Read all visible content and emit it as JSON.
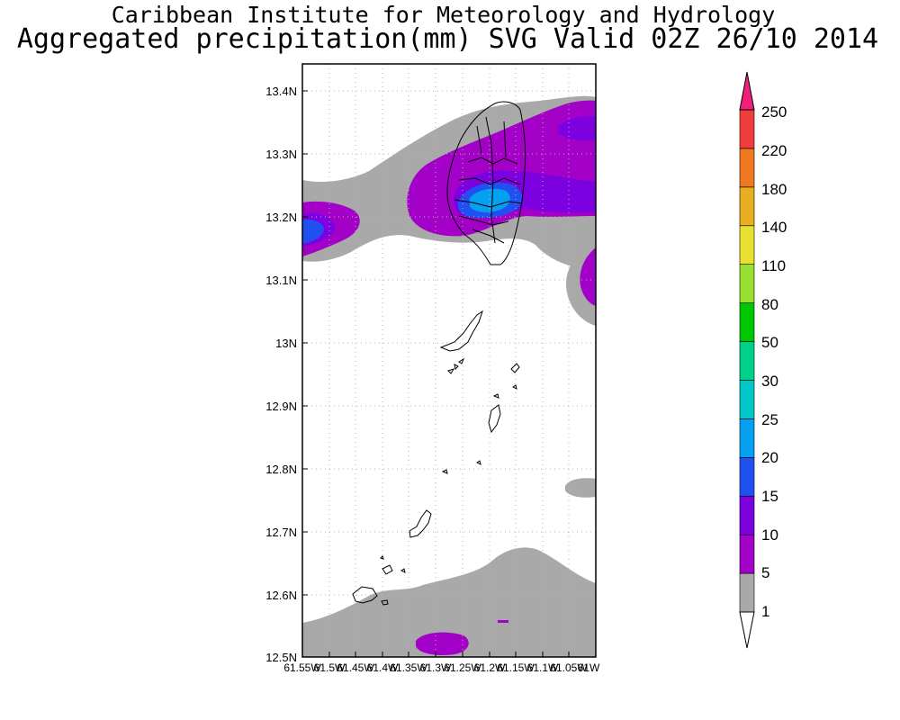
{
  "title": {
    "line1": "Caribbean Institute for Meteorology and Hydrology",
    "line2": "Aggregated precipitation(mm) SVG Valid 02Z 26/10 2014"
  },
  "map": {
    "lat_labels": [
      "13.4N",
      "13.3N",
      "13.2N",
      "13.1N",
      "13N",
      "12.9N",
      "12.8N",
      "12.7N",
      "12.6N",
      "12.5N"
    ],
    "lon_labels": [
      "61.55W",
      "61.5W",
      "61.45W",
      "61.4W",
      "61.35W",
      "61.3W",
      "61.25W",
      "61.2W",
      "61.15W",
      "61.1W",
      "61.05W",
      "61W"
    ],
    "lat_range": [
      12.5,
      13.45
    ],
    "lon_range": [
      -61.55,
      -61.0
    ]
  },
  "legend": {
    "values": [
      "1",
      "5",
      "10",
      "15",
      "20",
      "25",
      "30",
      "50",
      "80",
      "110",
      "140",
      "180",
      "220",
      "250"
    ],
    "colors": [
      "#a9a9a9",
      "#a300c8",
      "#7c00e0",
      "#2050f0",
      "#05a0f0",
      "#00c8c8",
      "#00d08a",
      "#00c800",
      "#98e030",
      "#e8e030",
      "#e8b020",
      "#f07820",
      "#f03c3c",
      "#f0207a"
    ]
  }
}
